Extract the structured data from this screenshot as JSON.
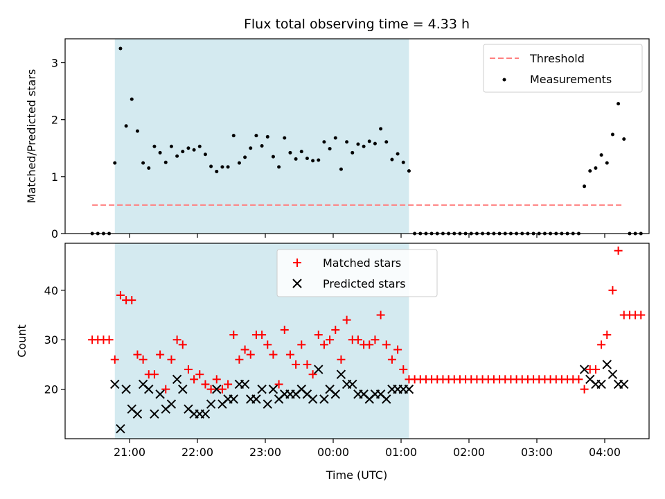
{
  "chart_data": [
    {
      "type": "scatter",
      "title": "Flux total observing time = 4.33 h",
      "xlabel": "",
      "ylabel": "Matched/Predicted stars",
      "ylim": [
        0,
        3.42
      ],
      "yticks": [
        0,
        1,
        2,
        3
      ],
      "shaded_region": {
        "start": "20:47",
        "end": "01:07",
        "color": "#d4eaf0"
      },
      "threshold": {
        "name": "Threshold",
        "value": 0.5,
        "x_start": "20:27",
        "x_end": "04:15",
        "color": "#ff7f7f"
      },
      "legend_position": "upper right",
      "series": [
        {
          "name": "Measurements",
          "color": "#000000",
          "points": [
            [
              "20:27",
              0
            ],
            [
              "20:32",
              0
            ],
            [
              "20:37",
              0
            ],
            [
              "20:42",
              0
            ],
            [
              "20:47",
              1.24
            ],
            [
              "20:52",
              3.25
            ],
            [
              "20:57",
              1.89
            ],
            [
              "21:02",
              2.36
            ],
            [
              "21:07",
              1.8
            ],
            [
              "21:12",
              1.24
            ],
            [
              "21:17",
              1.15
            ],
            [
              "21:22",
              1.53
            ],
            [
              "21:27",
              1.42
            ],
            [
              "21:32",
              1.25
            ],
            [
              "21:37",
              1.53
            ],
            [
              "21:42",
              1.36
            ],
            [
              "21:47",
              1.44
            ],
            [
              "21:52",
              1.5
            ],
            [
              "21:57",
              1.47
            ],
            [
              "22:02",
              1.53
            ],
            [
              "22:07",
              1.39
            ],
            [
              "22:12",
              1.18
            ],
            [
              "22:17",
              1.09
            ],
            [
              "22:22",
              1.17
            ],
            [
              "22:27",
              1.17
            ],
            [
              "22:32",
              1.72
            ],
            [
              "22:37",
              1.24
            ],
            [
              "22:42",
              1.34
            ],
            [
              "22:47",
              1.5
            ],
            [
              "22:52",
              1.72
            ],
            [
              "22:57",
              1.54
            ],
            [
              "23:02",
              1.7
            ],
            [
              "23:07",
              1.35
            ],
            [
              "23:12",
              1.17
            ],
            [
              "23:17",
              1.68
            ],
            [
              "23:22",
              1.42
            ],
            [
              "23:27",
              1.31
            ],
            [
              "23:32",
              1.44
            ],
            [
              "23:37",
              1.32
            ],
            [
              "23:42",
              1.28
            ],
            [
              "23:47",
              1.29
            ],
            [
              "23:52",
              1.61
            ],
            [
              "23:57",
              1.49
            ],
            [
              "00:02",
              1.68
            ],
            [
              "00:07",
              1.13
            ],
            [
              "00:12",
              1.61
            ],
            [
              "00:17",
              1.42
            ],
            [
              "00:22",
              1.57
            ],
            [
              "00:27",
              1.53
            ],
            [
              "00:32",
              1.62
            ],
            [
              "00:37",
              1.58
            ],
            [
              "00:42",
              1.84
            ],
            [
              "00:47",
              1.61
            ],
            [
              "00:52",
              1.3
            ],
            [
              "00:57",
              1.4
            ],
            [
              "01:02",
              1.25
            ],
            [
              "01:07",
              1.1
            ],
            [
              "01:12",
              0
            ],
            [
              "01:17",
              0
            ],
            [
              "01:22",
              0
            ],
            [
              "01:27",
              0
            ],
            [
              "01:32",
              0
            ],
            [
              "01:37",
              0
            ],
            [
              "01:42",
              0
            ],
            [
              "01:47",
              0
            ],
            [
              "01:52",
              0
            ],
            [
              "01:57",
              0
            ],
            [
              "02:02",
              0
            ],
            [
              "02:07",
              0
            ],
            [
              "02:12",
              0
            ],
            [
              "02:17",
              0
            ],
            [
              "02:22",
              0
            ],
            [
              "02:27",
              0
            ],
            [
              "02:32",
              0
            ],
            [
              "02:37",
              0
            ],
            [
              "02:42",
              0
            ],
            [
              "02:47",
              0
            ],
            [
              "02:52",
              0
            ],
            [
              "02:57",
              0
            ],
            [
              "03:02",
              0
            ],
            [
              "03:07",
              0
            ],
            [
              "03:12",
              0
            ],
            [
              "03:17",
              0
            ],
            [
              "03:22",
              0
            ],
            [
              "03:27",
              0
            ],
            [
              "03:32",
              0
            ],
            [
              "03:37",
              0
            ],
            [
              "03:42",
              0.83
            ],
            [
              "03:47",
              1.1
            ],
            [
              "03:52",
              1.15
            ],
            [
              "03:57",
              1.38
            ],
            [
              "04:02",
              1.24
            ],
            [
              "04:07",
              1.74
            ],
            [
              "04:12",
              2.28
            ],
            [
              "04:17",
              1.66
            ],
            [
              "04:22",
              0
            ],
            [
              "04:27",
              0
            ],
            [
              "04:32",
              0
            ]
          ]
        }
      ]
    },
    {
      "type": "scatter",
      "title": "",
      "xlabel": "Time (UTC)",
      "ylabel": "Count",
      "ylim": [
        10,
        49.5
      ],
      "yticks": [
        20,
        30,
        40
      ],
      "xtick_labels": [
        "21:00",
        "22:00",
        "23:00",
        "00:00",
        "01:00",
        "02:00",
        "03:00",
        "04:00"
      ],
      "shaded_region": {
        "start": "20:47",
        "end": "01:07",
        "color": "#d4eaf0"
      },
      "legend_position": "upper center",
      "series": [
        {
          "name": "Matched stars",
          "marker": "plus",
          "color": "#ff0000",
          "points": [
            [
              "20:27",
              30
            ],
            [
              "20:32",
              30
            ],
            [
              "20:37",
              30
            ],
            [
              "20:42",
              30
            ],
            [
              "20:47",
              26
            ],
            [
              "20:52",
              39
            ],
            [
              "20:57",
              38
            ],
            [
              "21:02",
              38
            ],
            [
              "21:07",
              27
            ],
            [
              "21:12",
              26
            ],
            [
              "21:17",
              23
            ],
            [
              "21:22",
              23
            ],
            [
              "21:27",
              27
            ],
            [
              "21:32",
              20
            ],
            [
              "21:37",
              26
            ],
            [
              "21:42",
              30
            ],
            [
              "21:47",
              29
            ],
            [
              "21:52",
              24
            ],
            [
              "21:57",
              22
            ],
            [
              "22:02",
              23
            ],
            [
              "22:07",
              21
            ],
            [
              "22:12",
              20
            ],
            [
              "22:17",
              22
            ],
            [
              "22:22",
              20
            ],
            [
              "22:27",
              21
            ],
            [
              "22:32",
              31
            ],
            [
              "22:37",
              26
            ],
            [
              "22:42",
              28
            ],
            [
              "22:47",
              27
            ],
            [
              "22:52",
              31
            ],
            [
              "22:57",
              31
            ],
            [
              "23:02",
              29
            ],
            [
              "23:07",
              27
            ],
            [
              "23:12",
              21
            ],
            [
              "23:17",
              32
            ],
            [
              "23:22",
              27
            ],
            [
              "23:27",
              25
            ],
            [
              "23:32",
              29
            ],
            [
              "23:37",
              25
            ],
            [
              "23:42",
              23
            ],
            [
              "23:47",
              31
            ],
            [
              "23:52",
              29
            ],
            [
              "23:57",
              30
            ],
            [
              "00:02",
              32
            ],
            [
              "00:07",
              26
            ],
            [
              "00:12",
              34
            ],
            [
              "00:17",
              30
            ],
            [
              "00:22",
              30
            ],
            [
              "00:27",
              29
            ],
            [
              "00:32",
              29
            ],
            [
              "00:37",
              30
            ],
            [
              "00:42",
              35
            ],
            [
              "00:47",
              29
            ],
            [
              "00:52",
              26
            ],
            [
              "00:57",
              28
            ],
            [
              "01:02",
              24
            ],
            [
              "01:07",
              22
            ],
            [
              "01:12",
              22
            ],
            [
              "01:17",
              22
            ],
            [
              "01:22",
              22
            ],
            [
              "01:27",
              22
            ],
            [
              "01:32",
              22
            ],
            [
              "01:37",
              22
            ],
            [
              "01:42",
              22
            ],
            [
              "01:47",
              22
            ],
            [
              "01:52",
              22
            ],
            [
              "01:57",
              22
            ],
            [
              "02:02",
              22
            ],
            [
              "02:07",
              22
            ],
            [
              "02:12",
              22
            ],
            [
              "02:17",
              22
            ],
            [
              "02:22",
              22
            ],
            [
              "02:27",
              22
            ],
            [
              "02:32",
              22
            ],
            [
              "02:37",
              22
            ],
            [
              "02:42",
              22
            ],
            [
              "02:47",
              22
            ],
            [
              "02:52",
              22
            ],
            [
              "02:57",
              22
            ],
            [
              "03:02",
              22
            ],
            [
              "03:07",
              22
            ],
            [
              "03:12",
              22
            ],
            [
              "03:17",
              22
            ],
            [
              "03:22",
              22
            ],
            [
              "03:27",
              22
            ],
            [
              "03:32",
              22
            ],
            [
              "03:37",
              22
            ],
            [
              "03:42",
              20
            ],
            [
              "03:47",
              24
            ],
            [
              "03:52",
              24
            ],
            [
              "03:57",
              29
            ],
            [
              "04:02",
              31
            ],
            [
              "04:07",
              40
            ],
            [
              "04:12",
              48
            ],
            [
              "04:17",
              35
            ],
            [
              "04:22",
              35
            ],
            [
              "04:27",
              35
            ],
            [
              "04:32",
              35
            ]
          ]
        },
        {
          "name": "Predicted stars",
          "marker": "x",
          "color": "#000000",
          "points": [
            [
              "20:47",
              21
            ],
            [
              "20:52",
              12
            ],
            [
              "20:57",
              20
            ],
            [
              "21:02",
              16
            ],
            [
              "21:07",
              15
            ],
            [
              "21:12",
              21
            ],
            [
              "21:17",
              20
            ],
            [
              "21:22",
              15
            ],
            [
              "21:27",
              19
            ],
            [
              "21:32",
              16
            ],
            [
              "21:37",
              17
            ],
            [
              "21:42",
              22
            ],
            [
              "21:47",
              20
            ],
            [
              "21:52",
              16
            ],
            [
              "21:57",
              15
            ],
            [
              "22:02",
              15
            ],
            [
              "22:07",
              15
            ],
            [
              "22:12",
              17
            ],
            [
              "22:17",
              20
            ],
            [
              "22:22",
              17
            ],
            [
              "22:27",
              18
            ],
            [
              "22:32",
              18
            ],
            [
              "22:37",
              21
            ],
            [
              "22:42",
              21
            ],
            [
              "22:47",
              18
            ],
            [
              "22:52",
              18
            ],
            [
              "22:57",
              20
            ],
            [
              "23:02",
              17
            ],
            [
              "23:07",
              20
            ],
            [
              "23:12",
              18
            ],
            [
              "23:17",
              19
            ],
            [
              "23:22",
              19
            ],
            [
              "23:27",
              19
            ],
            [
              "23:32",
              20
            ],
            [
              "23:37",
              19
            ],
            [
              "23:42",
              18
            ],
            [
              "23:47",
              24
            ],
            [
              "23:52",
              18
            ],
            [
              "23:57",
              20
            ],
            [
              "00:02",
              19
            ],
            [
              "00:07",
              23
            ],
            [
              "00:12",
              21
            ],
            [
              "00:17",
              21
            ],
            [
              "00:22",
              19
            ],
            [
              "00:27",
              19
            ],
            [
              "00:32",
              18
            ],
            [
              "00:37",
              19
            ],
            [
              "00:42",
              19
            ],
            [
              "00:47",
              18
            ],
            [
              "00:52",
              20
            ],
            [
              "00:57",
              20
            ],
            [
              "01:02",
              20
            ],
            [
              "01:07",
              20
            ],
            [
              "03:42",
              24
            ],
            [
              "03:47",
              22
            ],
            [
              "03:52",
              21
            ],
            [
              "03:57",
              21
            ],
            [
              "04:02",
              25
            ],
            [
              "04:07",
              23
            ],
            [
              "04:12",
              21
            ],
            [
              "04:17",
              21
            ]
          ]
        }
      ]
    }
  ]
}
